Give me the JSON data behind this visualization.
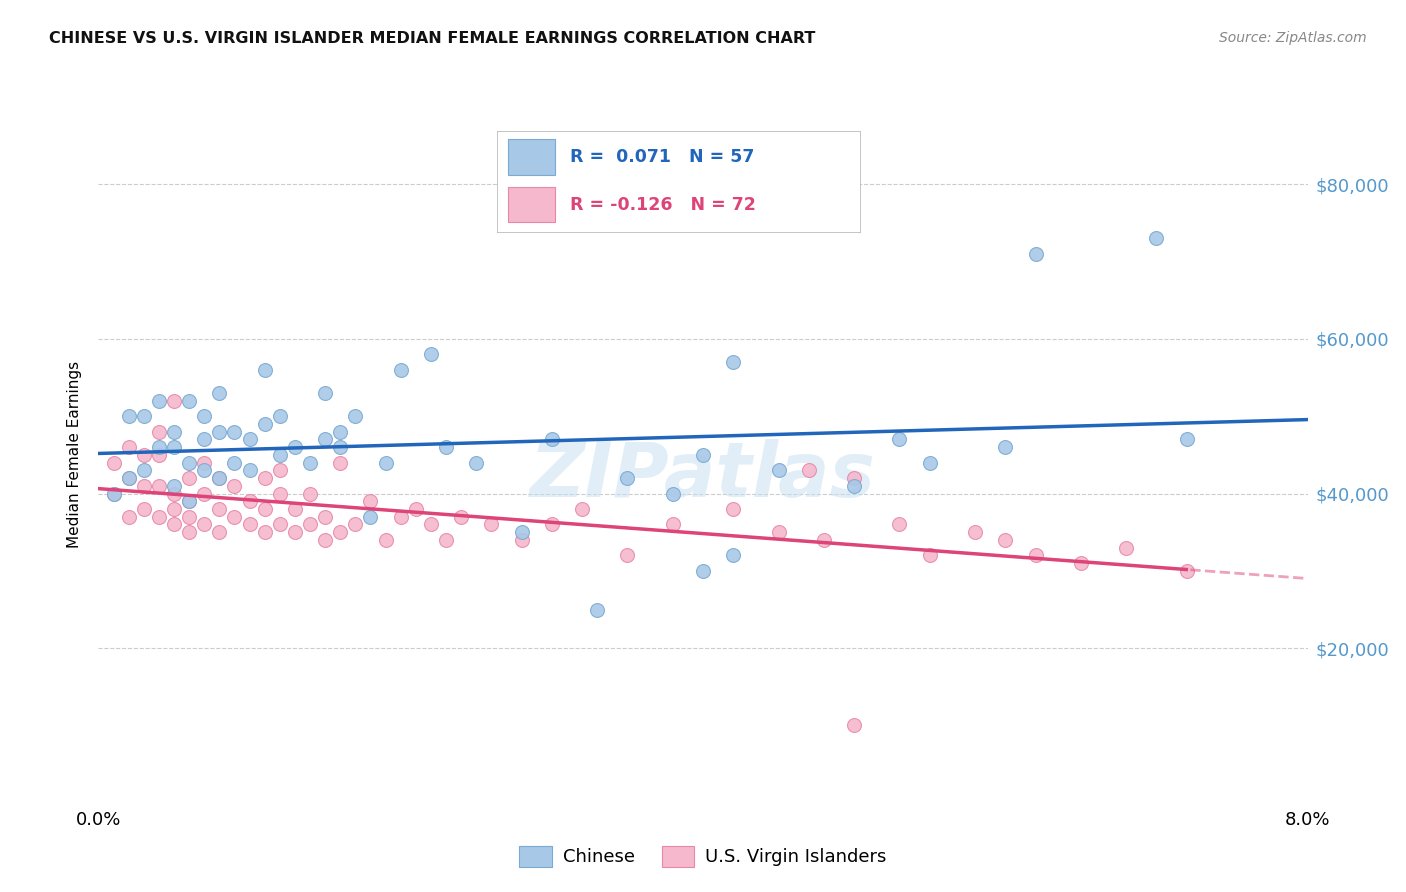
{
  "title": "CHINESE VS U.S. VIRGIN ISLANDER MEDIAN FEMALE EARNINGS CORRELATION CHART",
  "source": "Source: ZipAtlas.com",
  "ylabel": "Median Female Earnings",
  "x_min": 0.0,
  "x_max": 0.08,
  "y_min": 0,
  "y_max": 90000,
  "watermark": "ZIPatlas",
  "chinese_color": "#a8c8e8",
  "chinese_edge_color": "#7aaad0",
  "virgin_color": "#f5b8cc",
  "virgin_edge_color": "#e888a8",
  "trend_chinese_color": "#2266bb",
  "trend_virgin_color": "#dd4477",
  "background_color": "#ffffff",
  "grid_color": "#cccccc",
  "right_axis_color": "#5599cc",
  "chinese_x": [
    0.001,
    0.002,
    0.002,
    0.003,
    0.003,
    0.004,
    0.004,
    0.005,
    0.005,
    0.005,
    0.006,
    0.006,
    0.006,
    0.007,
    0.007,
    0.007,
    0.008,
    0.008,
    0.008,
    0.009,
    0.009,
    0.01,
    0.01,
    0.011,
    0.011,
    0.012,
    0.012,
    0.013,
    0.014,
    0.015,
    0.015,
    0.016,
    0.016,
    0.017,
    0.018,
    0.019,
    0.02,
    0.022,
    0.023,
    0.025,
    0.028,
    0.03,
    0.033,
    0.035,
    0.038,
    0.04,
    0.042,
    0.045,
    0.05,
    0.053,
    0.04,
    0.042,
    0.055,
    0.06,
    0.062,
    0.07,
    0.072
  ],
  "chinese_y": [
    40000,
    42000,
    50000,
    43000,
    50000,
    46000,
    52000,
    41000,
    46000,
    48000,
    39000,
    44000,
    52000,
    43000,
    47000,
    50000,
    42000,
    48000,
    53000,
    44000,
    48000,
    43000,
    47000,
    49000,
    56000,
    45000,
    50000,
    46000,
    44000,
    47000,
    53000,
    46000,
    48000,
    50000,
    37000,
    44000,
    56000,
    58000,
    46000,
    44000,
    35000,
    47000,
    25000,
    42000,
    40000,
    45000,
    57000,
    43000,
    41000,
    47000,
    30000,
    32000,
    44000,
    46000,
    71000,
    73000,
    47000
  ],
  "virgin_x": [
    0.001,
    0.001,
    0.002,
    0.002,
    0.002,
    0.003,
    0.003,
    0.003,
    0.004,
    0.004,
    0.004,
    0.004,
    0.005,
    0.005,
    0.005,
    0.005,
    0.006,
    0.006,
    0.006,
    0.006,
    0.007,
    0.007,
    0.007,
    0.008,
    0.008,
    0.008,
    0.009,
    0.009,
    0.01,
    0.01,
    0.011,
    0.011,
    0.011,
    0.012,
    0.012,
    0.012,
    0.013,
    0.013,
    0.014,
    0.014,
    0.015,
    0.015,
    0.016,
    0.016,
    0.017,
    0.018,
    0.019,
    0.02,
    0.021,
    0.022,
    0.023,
    0.024,
    0.026,
    0.028,
    0.03,
    0.032,
    0.035,
    0.038,
    0.042,
    0.045,
    0.048,
    0.05,
    0.053,
    0.047,
    0.05,
    0.055,
    0.058,
    0.06,
    0.062,
    0.065,
    0.068,
    0.072
  ],
  "virgin_y": [
    40000,
    44000,
    37000,
    42000,
    46000,
    38000,
    41000,
    45000,
    37000,
    41000,
    45000,
    48000,
    36000,
    40000,
    38000,
    52000,
    35000,
    39000,
    42000,
    37000,
    36000,
    40000,
    44000,
    35000,
    38000,
    42000,
    37000,
    41000,
    36000,
    39000,
    35000,
    38000,
    42000,
    36000,
    40000,
    43000,
    35000,
    38000,
    36000,
    40000,
    34000,
    37000,
    35000,
    44000,
    36000,
    39000,
    34000,
    37000,
    38000,
    36000,
    34000,
    37000,
    36000,
    34000,
    36000,
    38000,
    32000,
    36000,
    38000,
    35000,
    34000,
    10000,
    36000,
    43000,
    42000,
    32000,
    35000,
    34000,
    32000,
    31000,
    33000,
    30000
  ]
}
